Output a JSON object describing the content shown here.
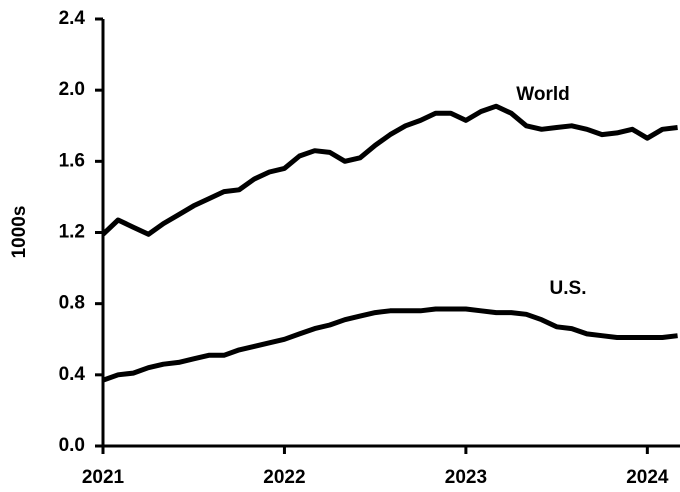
{
  "chart_data": {
    "type": "line",
    "y_label": "1000s",
    "x": [
      2021,
      2021.083,
      2021.167,
      2021.25,
      2021.333,
      2021.417,
      2021.5,
      2021.583,
      2021.667,
      2021.75,
      2021.833,
      2021.917,
      2022,
      2022.083,
      2022.167,
      2022.25,
      2022.333,
      2022.417,
      2022.5,
      2022.583,
      2022.667,
      2022.75,
      2022.833,
      2022.917,
      2023,
      2023.083,
      2023.167,
      2023.25,
      2023.333,
      2023.417,
      2023.5,
      2023.583,
      2023.667,
      2023.75,
      2023.833,
      2023.917,
      2024,
      2024.083,
      2024.167
    ],
    "series": [
      {
        "name": "World",
        "color": "#000000",
        "values": [
          1.19,
          1.27,
          1.23,
          1.19,
          1.25,
          1.3,
          1.35,
          1.39,
          1.43,
          1.44,
          1.5,
          1.54,
          1.56,
          1.63,
          1.66,
          1.65,
          1.6,
          1.62,
          1.69,
          1.75,
          1.8,
          1.83,
          1.87,
          1.87,
          1.83,
          1.88,
          1.91,
          1.87,
          1.8,
          1.78,
          1.79,
          1.8,
          1.78,
          1.75,
          1.76,
          1.78,
          1.73,
          1.78,
          1.79
        ]
      },
      {
        "name": "U.S.",
        "color": "#000000",
        "values": [
          0.37,
          0.4,
          0.41,
          0.44,
          0.46,
          0.47,
          0.49,
          0.51,
          0.51,
          0.54,
          0.56,
          0.58,
          0.6,
          0.63,
          0.66,
          0.68,
          0.71,
          0.73,
          0.75,
          0.76,
          0.76,
          0.76,
          0.77,
          0.77,
          0.77,
          0.76,
          0.75,
          0.75,
          0.74,
          0.71,
          0.67,
          0.66,
          0.63,
          0.62,
          0.61,
          0.61,
          0.61,
          0.61,
          0.62
        ]
      }
    ],
    "xlim": [
      2021,
      2024.18
    ],
    "xticks": [
      2021,
      2022,
      2023,
      2024
    ],
    "ylim": [
      0,
      2.4
    ],
    "yticks": [
      {
        "value": 0,
        "label": "0.0"
      },
      0.4,
      0.8,
      1.2,
      1.6,
      {
        "value": 2,
        "label": "2.0"
      },
      2.4
    ],
    "grid": false
  }
}
